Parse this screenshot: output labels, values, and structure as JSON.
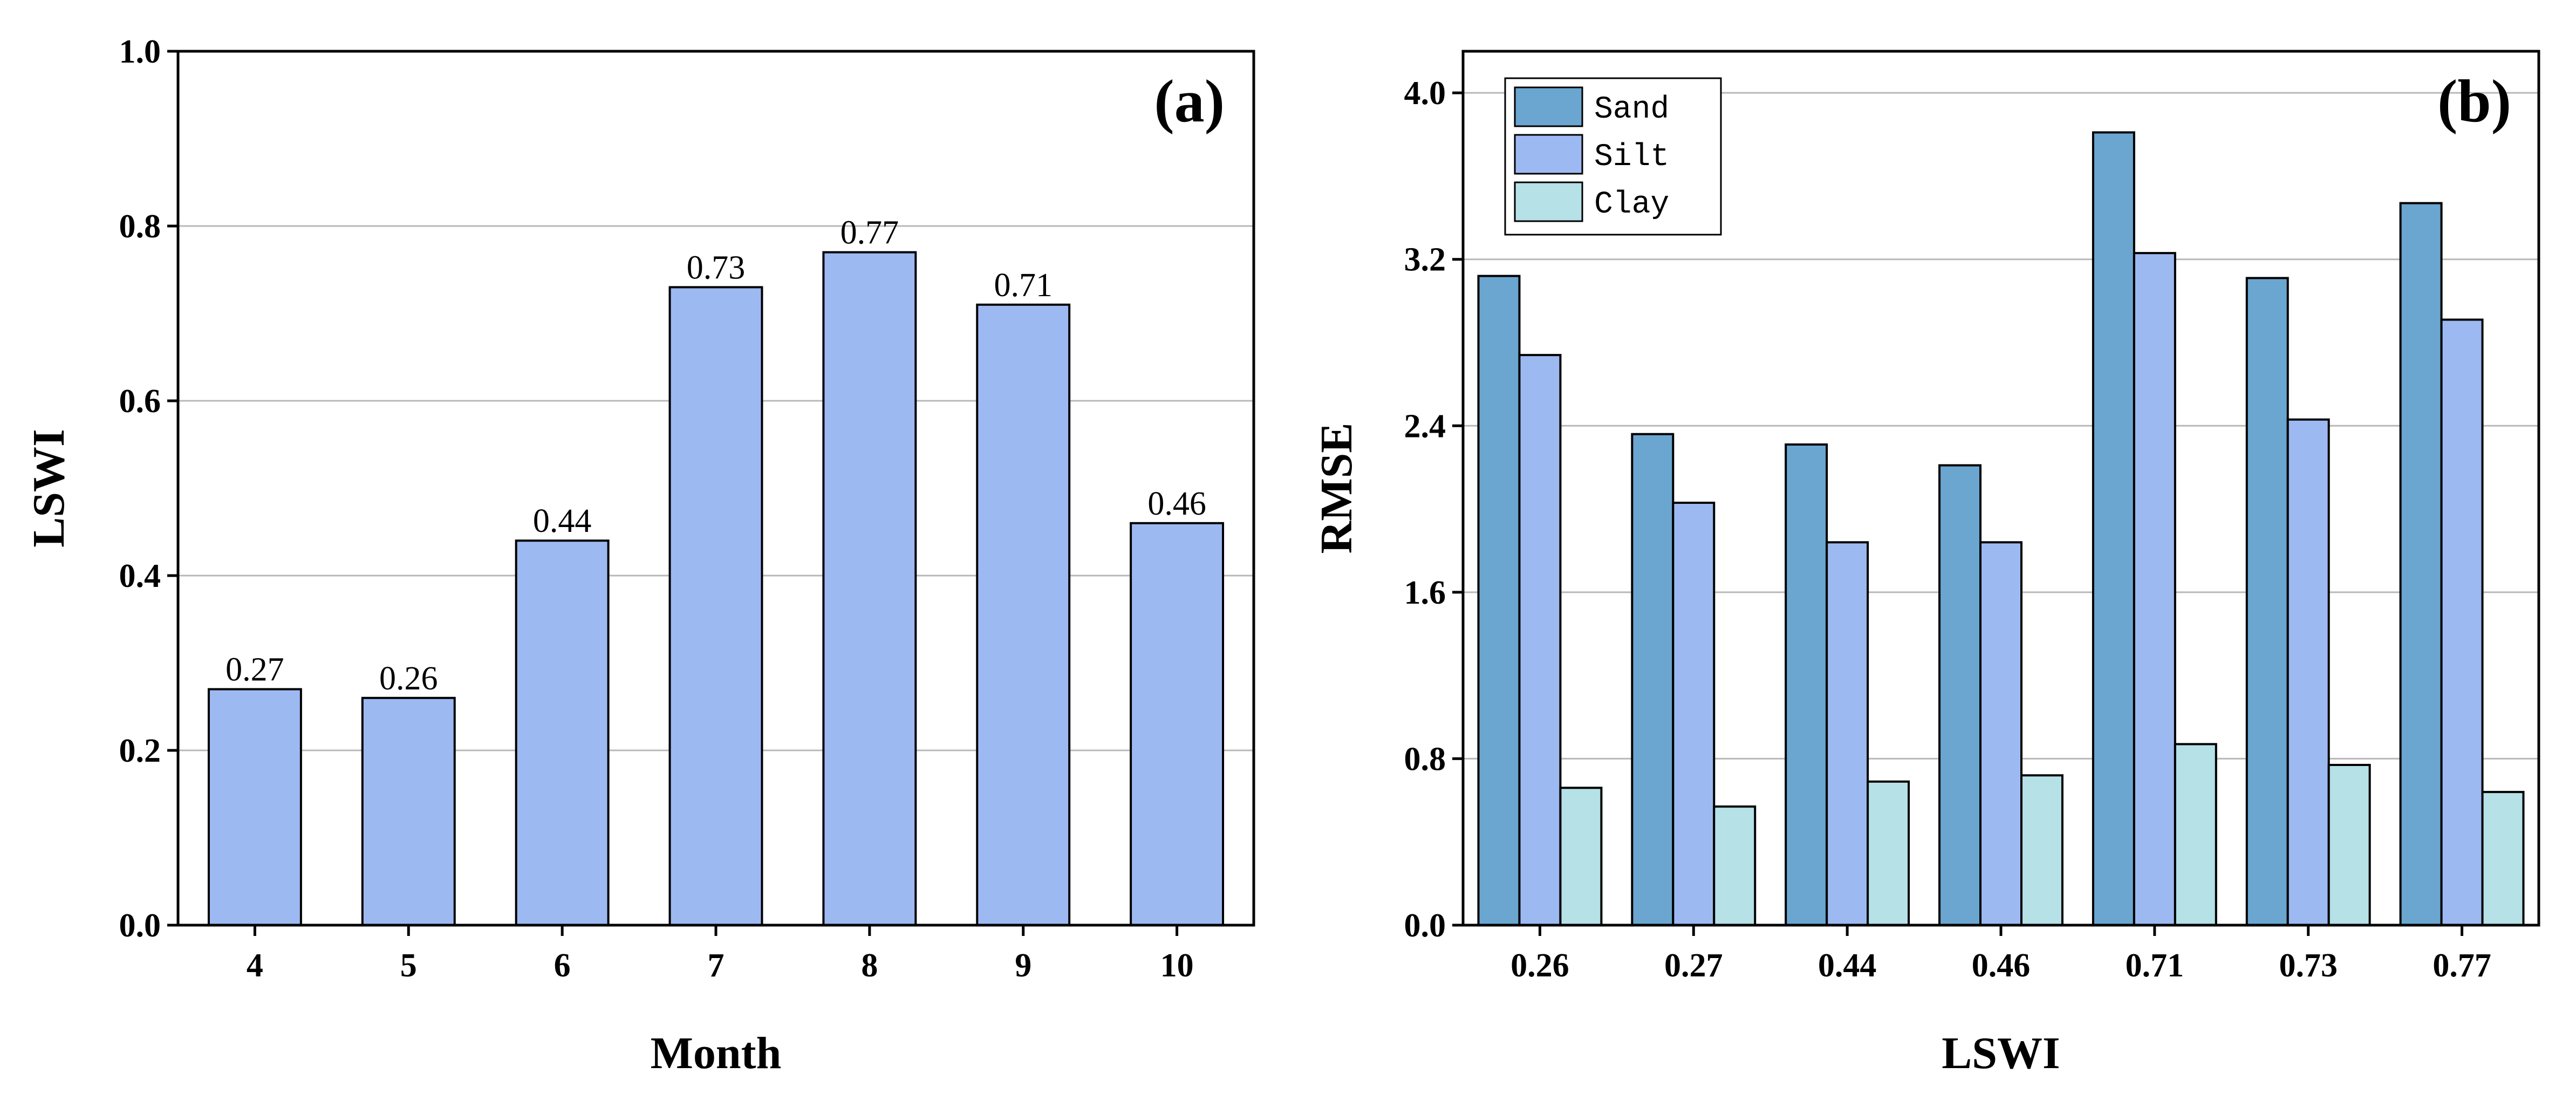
{
  "chart_data": [
    {
      "type": "bar",
      "panel_label": "(a)",
      "categories": [
        "4",
        "5",
        "6",
        "7",
        "8",
        "9",
        "10"
      ],
      "values": [
        0.27,
        0.26,
        0.44,
        0.73,
        0.77,
        0.71,
        0.46
      ],
      "data_labels": [
        "0.27",
        "0.26",
        "0.44",
        "0.73",
        "0.77",
        "0.71",
        "0.46"
      ],
      "xlabel": "Month",
      "ylabel": "LSWI",
      "ylim": [
        0,
        1.0
      ],
      "yticks": [
        "0.0",
        "0.2",
        "0.4",
        "0.6",
        "0.8",
        "1.0"
      ],
      "ytick_values": [
        0,
        0.2,
        0.4,
        0.6,
        0.8,
        1.0
      ],
      "grid": true,
      "color": "#9db9f2"
    },
    {
      "type": "bar",
      "panel_label": "(b)",
      "categories": [
        "0.26",
        "0.27",
        "0.44",
        "0.46",
        "0.71",
        "0.73",
        "0.77"
      ],
      "series": [
        {
          "name": "Sand",
          "color": "#6aa6d0",
          "values": [
            3.12,
            2.36,
            2.31,
            2.21,
            3.81,
            3.11,
            3.47
          ]
        },
        {
          "name": "Silt",
          "color": "#9db9f2",
          "values": [
            2.74,
            2.03,
            1.84,
            1.84,
            3.23,
            2.43,
            2.91
          ]
        },
        {
          "name": "Clay",
          "color": "#b5e1e7",
          "values": [
            0.66,
            0.57,
            0.69,
            0.72,
            0.87,
            0.77,
            0.64
          ]
        }
      ],
      "xlabel": "LSWI",
      "ylabel": "RMSE",
      "ylim": [
        0,
        4.2
      ],
      "yticks": [
        "0.0",
        "0.8",
        "1.6",
        "2.4",
        "3.2",
        "4.0"
      ],
      "ytick_values": [
        0,
        0.8,
        1.6,
        2.4,
        3.2,
        4.0
      ],
      "grid": true,
      "legend_position": "top-left"
    }
  ]
}
